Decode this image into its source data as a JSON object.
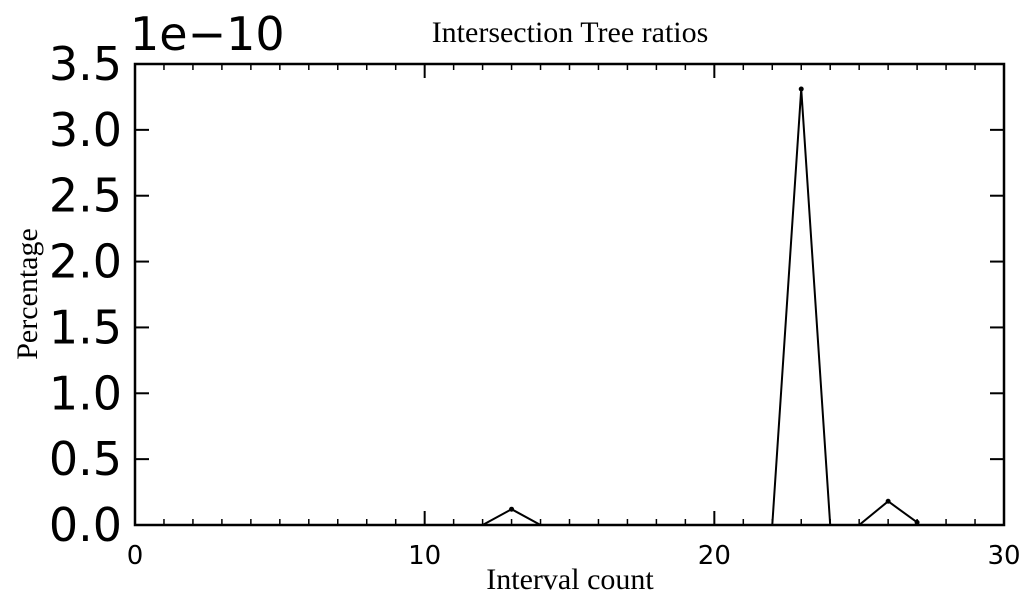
{
  "chart_data": {
    "type": "line",
    "title": "Intersection Tree ratios",
    "xlabel": "Interval count",
    "ylabel": "Percentage",
    "offset_label": "1e−10",
    "scale": 1e-10,
    "xlim": [
      0,
      30
    ],
    "ylim": [
      0,
      3.5e-10
    ],
    "xticks": [
      0,
      10,
      20,
      30
    ],
    "xtick_labels": [
      "0",
      "10",
      "20",
      "30"
    ],
    "yticks": [
      0,
      5e-11,
      1e-10,
      1.5e-10,
      2e-10,
      2.5e-10,
      3e-10,
      3.5e-10
    ],
    "ytick_labels": [
      "0.0",
      "0.5",
      "1.0",
      "1.5",
      "2.0",
      "2.5",
      "3.0",
      "3.5"
    ],
    "grid": false,
    "legend": "none",
    "series": [
      {
        "x": [
          0,
          1,
          2,
          3,
          4,
          5,
          6,
          7,
          8,
          9,
          10,
          11,
          12,
          13,
          14,
          15,
          16,
          17,
          18,
          19,
          20,
          21,
          22,
          23,
          24,
          25,
          26,
          27
        ],
        "y": [
          0,
          0,
          0,
          0,
          0,
          0,
          0,
          0,
          0,
          0,
          0,
          0,
          0,
          1.2e-11,
          0,
          0,
          0,
          0,
          0,
          0,
          0,
          0,
          0,
          3.31e-10,
          0,
          0,
          1.8e-11,
          2e-12
        ],
        "color": "#000000"
      }
    ]
  }
}
